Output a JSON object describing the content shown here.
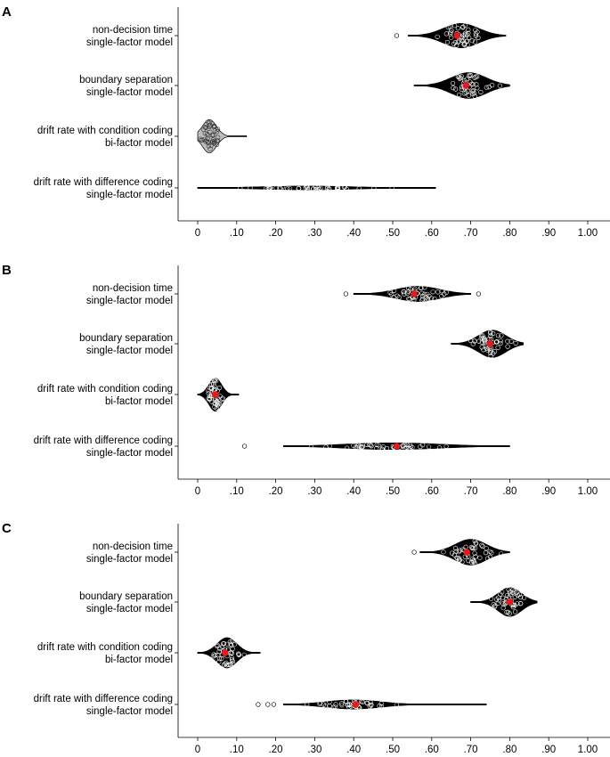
{
  "chart_data": [
    {
      "type": "violin",
      "panel": "A",
      "xlim": [
        0,
        1
      ],
      "x_ticks": [
        "0",
        ".10",
        ".20",
        ".30",
        ".40",
        ".50",
        ".60",
        ".70",
        ".80",
        ".90",
        "1.00"
      ],
      "grid": false,
      "categories": [
        {
          "label1": "non-decision time",
          "label2": "single-factor model",
          "min": 0.54,
          "max": 0.79,
          "center": 0.675,
          "spread": 0.045,
          "height": 0.8,
          "mean": 0.665,
          "fill": "#000000",
          "outliers": [
            0.51
          ]
        },
        {
          "label1": "boundary separation",
          "label2": "single-factor model",
          "min": 0.555,
          "max": 0.8,
          "center": 0.695,
          "spread": 0.045,
          "height": 0.85,
          "mean": 0.688,
          "fill": "#000000",
          "outliers": []
        },
        {
          "label1": "drift rate with condition coding",
          "label2": "bi-factor model",
          "min": 0.0,
          "max": 0.125,
          "center": 0.03,
          "spread": 0.018,
          "height": 1.1,
          "mean": null,
          "fill": "#bdbdbd",
          "outliers": []
        },
        {
          "label1": "drift rate with difference coding",
          "label2": "single-factor model",
          "min": 0.0,
          "max": 0.61,
          "center": 0.28,
          "spread": 0.12,
          "height": 0.12,
          "mean": null,
          "fill": "#000000",
          "outliers": []
        }
      ]
    },
    {
      "type": "violin",
      "panel": "B",
      "xlim": [
        0,
        1
      ],
      "x_ticks": [
        "0",
        ".10",
        ".20",
        ".30",
        ".40",
        ".50",
        ".60",
        ".70",
        ".80",
        ".90",
        "1.00"
      ],
      "grid": false,
      "categories": [
        {
          "label1": "non-decision time",
          "label2": "single-factor model",
          "min": 0.4,
          "max": 0.7,
          "center": 0.565,
          "spread": 0.055,
          "height": 0.5,
          "mean": 0.555,
          "fill": "#000000",
          "outliers": [
            0.38,
            0.72
          ]
        },
        {
          "label1": "boundary separation",
          "label2": "single-factor model",
          "min": 0.65,
          "max": 0.835,
          "center": 0.755,
          "spread": 0.035,
          "height": 0.9,
          "mean": 0.75,
          "fill": "#000000",
          "outliers": []
        },
        {
          "label1": "drift rate with condition coding",
          "label2": "bi-factor model",
          "min": 0.0,
          "max": 0.105,
          "center": 0.045,
          "spread": 0.016,
          "height": 1.1,
          "mean": 0.045,
          "fill": "#000000",
          "outliers": []
        },
        {
          "label1": "drift rate with difference coding",
          "label2": "single-factor model",
          "min": 0.22,
          "max": 0.8,
          "center": 0.5,
          "spread": 0.12,
          "height": 0.22,
          "mean": 0.51,
          "fill": "#000000",
          "outliers": [
            0.12
          ]
        }
      ]
    },
    {
      "type": "violin",
      "panel": "C",
      "xlim": [
        0,
        1
      ],
      "x_ticks": [
        "0",
        ".10",
        ".20",
        ".30",
        ".40",
        ".50",
        ".60",
        ".70",
        ".80",
        ".90",
        "1.00"
      ],
      "grid": false,
      "categories": [
        {
          "label1": "non-decision time",
          "label2": "single-factor model",
          "min": 0.57,
          "max": 0.8,
          "center": 0.7,
          "spread": 0.04,
          "height": 0.85,
          "mean": 0.69,
          "fill": "#000000",
          "outliers": [
            0.555
          ]
        },
        {
          "label1": "boundary separation",
          "label2": "single-factor model",
          "min": 0.7,
          "max": 0.87,
          "center": 0.8,
          "spread": 0.03,
          "height": 0.95,
          "mean": 0.8,
          "fill": "#000000",
          "outliers": []
        },
        {
          "label1": "drift rate with condition coding",
          "label2": "bi-factor model",
          "min": 0.0,
          "max": 0.16,
          "center": 0.075,
          "spread": 0.025,
          "height": 1.0,
          "mean": 0.07,
          "fill": "#000000",
          "outliers": []
        },
        {
          "label1": "drift rate with difference coding",
          "label2": "single-factor model",
          "min": 0.22,
          "max": 0.74,
          "center": 0.4,
          "spread": 0.07,
          "height": 0.3,
          "mean": 0.405,
          "fill": "#000000",
          "outliers": [
            0.155,
            0.18,
            0.195
          ]
        }
      ]
    }
  ],
  "mean_color": "#e41a1c"
}
